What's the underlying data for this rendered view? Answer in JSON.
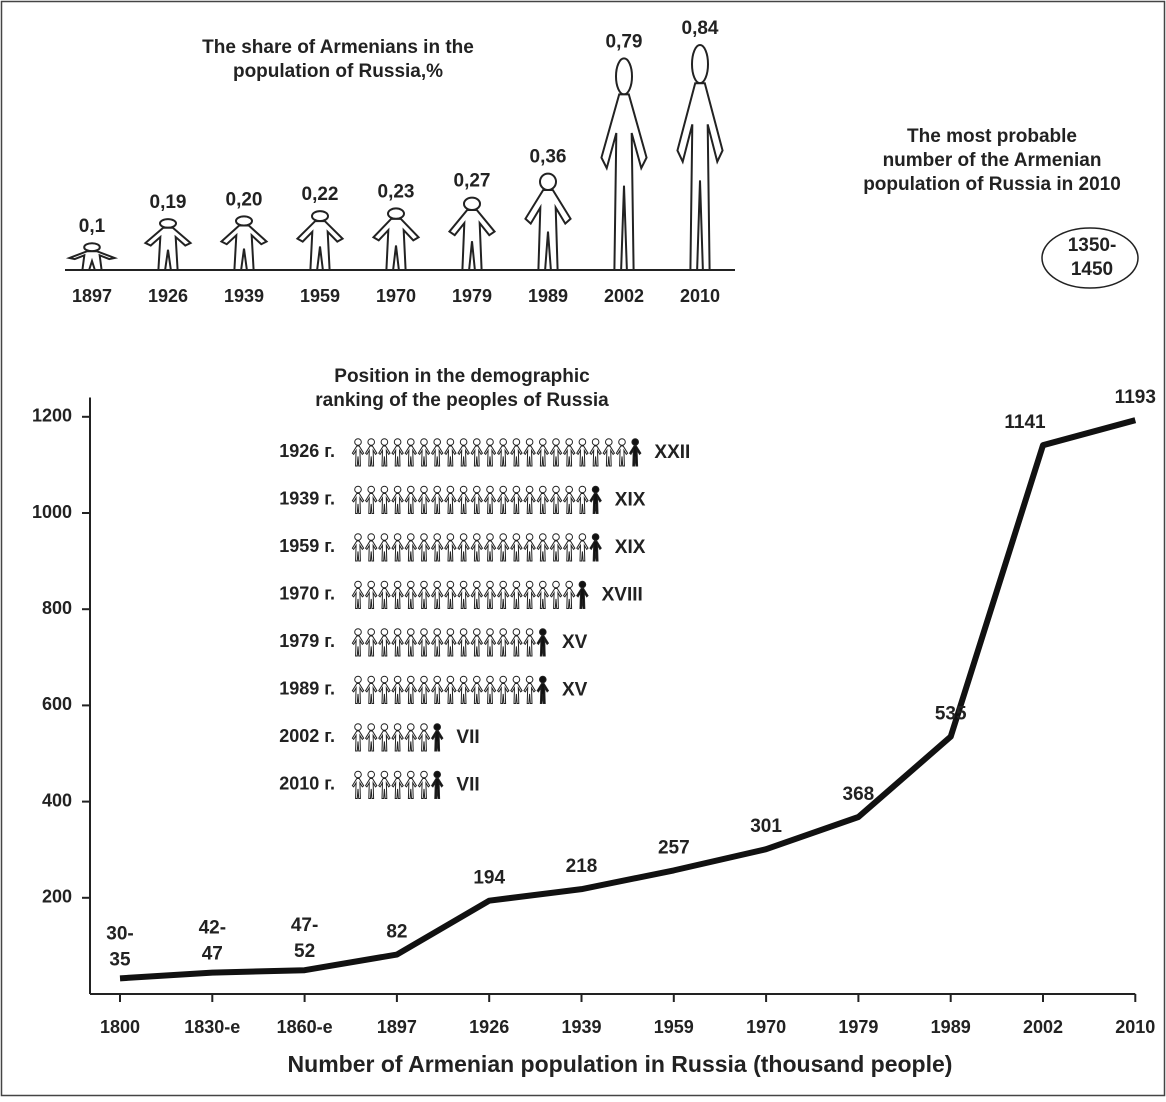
{
  "chart_data": [
    {
      "type": "pictogram",
      "title": [
        "The share of Armenians in the",
        "population of Russia,%"
      ],
      "categories": [
        "1897",
        "1926",
        "1939",
        "1959",
        "1970",
        "1979",
        "1989",
        "2002",
        "2010"
      ],
      "values": [
        0.1,
        0.19,
        0.2,
        0.22,
        0.23,
        0.27,
        0.36,
        0.79,
        0.84
      ],
      "value_labels": [
        "0,1",
        "0,19",
        "0,20",
        "0,22",
        "0,23",
        "0,27",
        "0,36",
        "0,79",
        "0,84"
      ],
      "annotation": {
        "text": [
          "The most probable",
          "number of the Armenian",
          "population of Russia in 2010"
        ],
        "label": "1350-1450"
      }
    },
    {
      "type": "pictogram-row",
      "title": [
        "Position in the demographic",
        "ranking of the peoples of Russia"
      ],
      "categories": [
        "1926 г.",
        "1939 г.",
        "1959 г.",
        "1970 г.",
        "1979 г.",
        "1989 г.",
        "2002 г.",
        "2010 г."
      ],
      "values": [
        22,
        19,
        19,
        18,
        15,
        15,
        7,
        7
      ],
      "value_labels": [
        "XXII",
        "XIX",
        "XIX",
        "XVIII",
        "XV",
        "XV",
        "VII",
        "VII"
      ]
    },
    {
      "type": "line",
      "title": "Number of Armenian population in Russia (thousand people)",
      "categories": [
        "1800",
        "1830-e",
        "1860-e",
        "1897",
        "1926",
        "1939",
        "1959",
        "1970",
        "1979",
        "1989",
        "2002",
        "2010"
      ],
      "values": [
        32.5,
        44.5,
        49.5,
        82,
        194,
        218,
        257,
        301,
        368,
        535,
        1141,
        1193
      ],
      "value_labels": [
        "30-35",
        "42-47",
        "47-52",
        "82",
        "194",
        "218",
        "257",
        "301",
        "368",
        "535",
        "1141",
        "1193"
      ],
      "ylim": [
        0,
        1240
      ],
      "yticks": [
        200,
        400,
        600,
        800,
        1000,
        1200
      ],
      "color": "#111111"
    }
  ]
}
